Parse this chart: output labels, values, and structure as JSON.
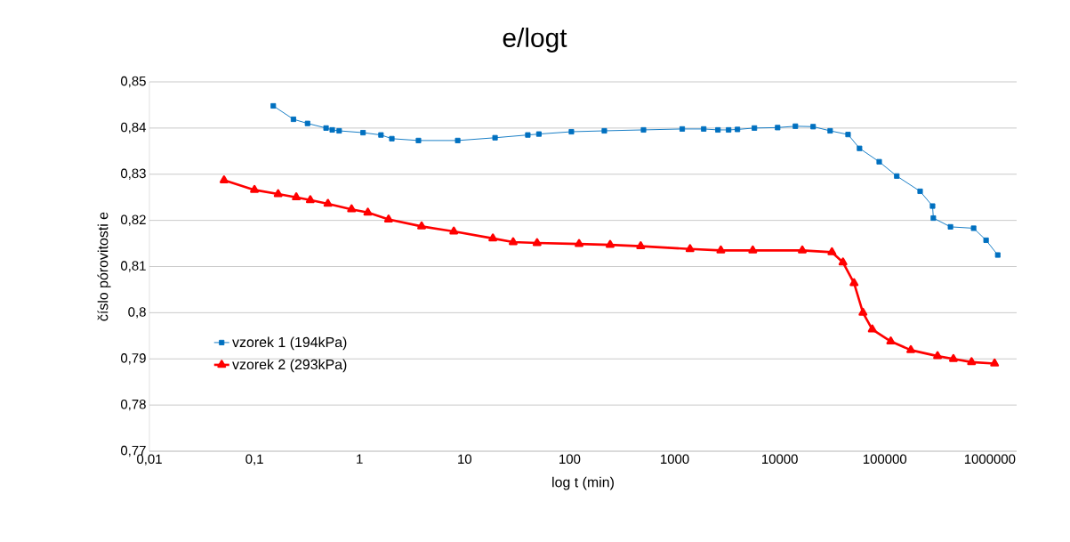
{
  "chart_data": {
    "type": "line",
    "title": "e/logt",
    "xlabel": "log t (min)",
    "ylabel": "číslo pórovitosti e",
    "log": "x",
    "grid": "y",
    "legend": "left",
    "xlim": [
      0.01,
      1800000
    ],
    "xticks": [
      {
        "value": 0.01,
        "label": "0,01"
      },
      {
        "value": 0.1,
        "label": "0,1"
      },
      1,
      10,
      100,
      1000,
      10000,
      100000,
      1000000
    ],
    "ylim": [
      0.77,
      0.85
    ],
    "yticks": [
      {
        "value": 0.77,
        "label": "0,77"
      },
      {
        "value": 0.78,
        "label": "0,78"
      },
      {
        "value": 0.79,
        "label": "0,79"
      },
      {
        "value": 0.8,
        "label": "0,8"
      },
      {
        "value": 0.81,
        "label": "0,81"
      },
      {
        "value": 0.82,
        "label": "0,82"
      },
      {
        "value": 0.83,
        "label": "0,83"
      },
      {
        "value": 0.84,
        "label": "0,84"
      },
      {
        "value": 0.85,
        "label": "0,85"
      }
    ],
    "series": [
      {
        "name": "vzorek 1 (194kPa)",
        "color": "#0070c0",
        "marker": "square",
        "x": [
          0.151,
          0.235,
          0.32,
          0.48,
          0.55,
          0.64,
          1.08,
          1.6,
          2.03,
          3.64,
          8.6,
          19.5,
          40,
          51,
          104,
          214,
          505,
          1180,
          1890,
          2580,
          3260,
          3960,
          5740,
          9550,
          14100,
          20800,
          30200,
          44700,
          57500,
          88500,
          130000,
          217000,
          285000,
          290000,
          422000,
          701000,
          921000,
          1190000
        ],
        "values": [
          0.8448,
          0.8419,
          0.841,
          0.84,
          0.8396,
          0.8394,
          0.839,
          0.8385,
          0.8377,
          0.8373,
          0.8373,
          0.8379,
          0.8385,
          0.8387,
          0.8392,
          0.8394,
          0.8396,
          0.8398,
          0.8398,
          0.8396,
          0.8396,
          0.8397,
          0.84,
          0.8401,
          0.8404,
          0.8403,
          0.8394,
          0.8386,
          0.8356,
          0.8327,
          0.8296,
          0.8263,
          0.8231,
          0.8205,
          0.8186,
          0.8183,
          0.8157,
          0.8125
        ]
      },
      {
        "name": "vzorek 2 (293kPa)",
        "color": "#ff0000",
        "marker": "triangle",
        "x": [
          0.0513,
          0.1,
          0.168,
          0.25,
          0.34,
          0.5,
          0.84,
          1.2,
          1.89,
          3.9,
          7.9,
          18.6,
          29,
          49,
          123,
          243,
          475,
          1400,
          2750,
          5540,
          16400,
          31400,
          40000,
          51000,
          62000,
          76000,
          114000,
          177000,
          318000,
          450000,
          670000,
          1110000
        ],
        "values": [
          0.8287,
          0.8266,
          0.8257,
          0.825,
          0.8244,
          0.8236,
          0.8224,
          0.8217,
          0.8202,
          0.8187,
          0.8176,
          0.8161,
          0.8153,
          0.8151,
          0.8149,
          0.8147,
          0.8144,
          0.8138,
          0.8135,
          0.8135,
          0.8135,
          0.8131,
          0.8109,
          0.8064,
          0.8,
          0.7964,
          0.7938,
          0.7919,
          0.7906,
          0.79,
          0.7893,
          0.789
        ]
      }
    ]
  }
}
